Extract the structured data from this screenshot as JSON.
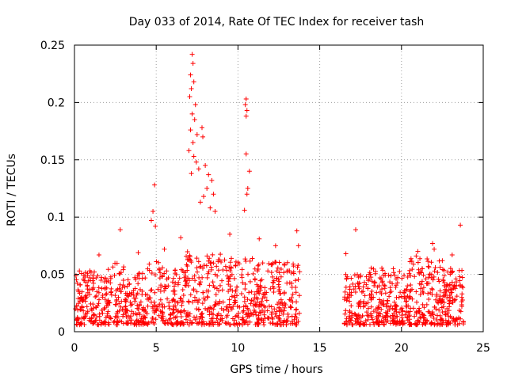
{
  "chart_data": {
    "type": "scatter",
    "title": "Day 033 of 2014, Rate Of TEC Index for receiver tash",
    "xlabel": "GPS time / hours",
    "ylabel": "ROTI / TECUs",
    "xlim": [
      0,
      25
    ],
    "ylim": [
      0,
      0.25
    ],
    "x_ticks": [
      0,
      5,
      10,
      15,
      20,
      25
    ],
    "x_tick_labels": [
      "0",
      "5",
      "10",
      "15",
      "20",
      "25"
    ],
    "y_ticks": [
      0,
      0.05,
      0.1,
      0.15,
      0.2,
      0.25
    ],
    "y_tick_labels": [
      "0",
      "0.05",
      "0.1",
      "0.15",
      "0.2",
      "0.25"
    ],
    "grid": true,
    "marker": "+",
    "color": "#ff0000",
    "data_gap_hours": [
      13.8,
      16.5
    ],
    "series": [
      {
        "name": "ROTI",
        "points": [
          [
            7.2,
            0.242
          ],
          [
            7.25,
            0.234
          ],
          [
            7.1,
            0.224
          ],
          [
            7.3,
            0.218
          ],
          [
            7.15,
            0.212
          ],
          [
            7.05,
            0.205
          ],
          [
            7.4,
            0.198
          ],
          [
            7.2,
            0.19
          ],
          [
            7.35,
            0.185
          ],
          [
            7.1,
            0.176
          ],
          [
            7.5,
            0.172
          ],
          [
            7.25,
            0.165
          ],
          [
            7.0,
            0.158
          ],
          [
            7.3,
            0.153
          ],
          [
            7.45,
            0.148
          ],
          [
            7.6,
            0.142
          ],
          [
            7.15,
            0.138
          ],
          [
            7.8,
            0.178
          ],
          [
            7.85,
            0.17
          ],
          [
            8.0,
            0.145
          ],
          [
            8.2,
            0.137
          ],
          [
            8.4,
            0.132
          ],
          [
            8.5,
            0.12
          ],
          [
            8.1,
            0.125
          ],
          [
            7.9,
            0.118
          ],
          [
            7.7,
            0.113
          ],
          [
            8.3,
            0.108
          ],
          [
            8.6,
            0.105
          ],
          [
            10.5,
            0.203
          ],
          [
            10.45,
            0.198
          ],
          [
            10.55,
            0.193
          ],
          [
            10.5,
            0.188
          ],
          [
            10.5,
            0.155
          ],
          [
            10.7,
            0.14
          ],
          [
            10.6,
            0.125
          ],
          [
            10.55,
            0.12
          ],
          [
            10.4,
            0.106
          ],
          [
            4.9,
            0.128
          ],
          [
            4.8,
            0.105
          ],
          [
            4.7,
            0.097
          ],
          [
            4.95,
            0.092
          ],
          [
            2.8,
            0.089
          ],
          [
            13.6,
            0.088
          ],
          [
            17.2,
            0.089
          ],
          [
            23.6,
            0.093
          ],
          [
            13.7,
            0.075
          ],
          [
            21.9,
            0.077
          ],
          [
            22.0,
            0.072
          ],
          [
            21.0,
            0.07
          ],
          [
            20.9,
            0.066
          ],
          [
            16.6,
            0.068
          ],
          [
            23.1,
            0.067
          ],
          [
            1.5,
            0.067
          ],
          [
            3.9,
            0.069
          ],
          [
            9.5,
            0.085
          ],
          [
            11.3,
            0.081
          ],
          [
            12.3,
            0.075
          ],
          [
            6.5,
            0.082
          ],
          [
            5.5,
            0.072
          ],
          [
            0.3,
            0.053
          ],
          [
            19.5,
            0.055
          ],
          [
            18.1,
            0.05
          ],
          [
            22.5,
            0.062
          ]
        ]
      }
    ]
  }
}
